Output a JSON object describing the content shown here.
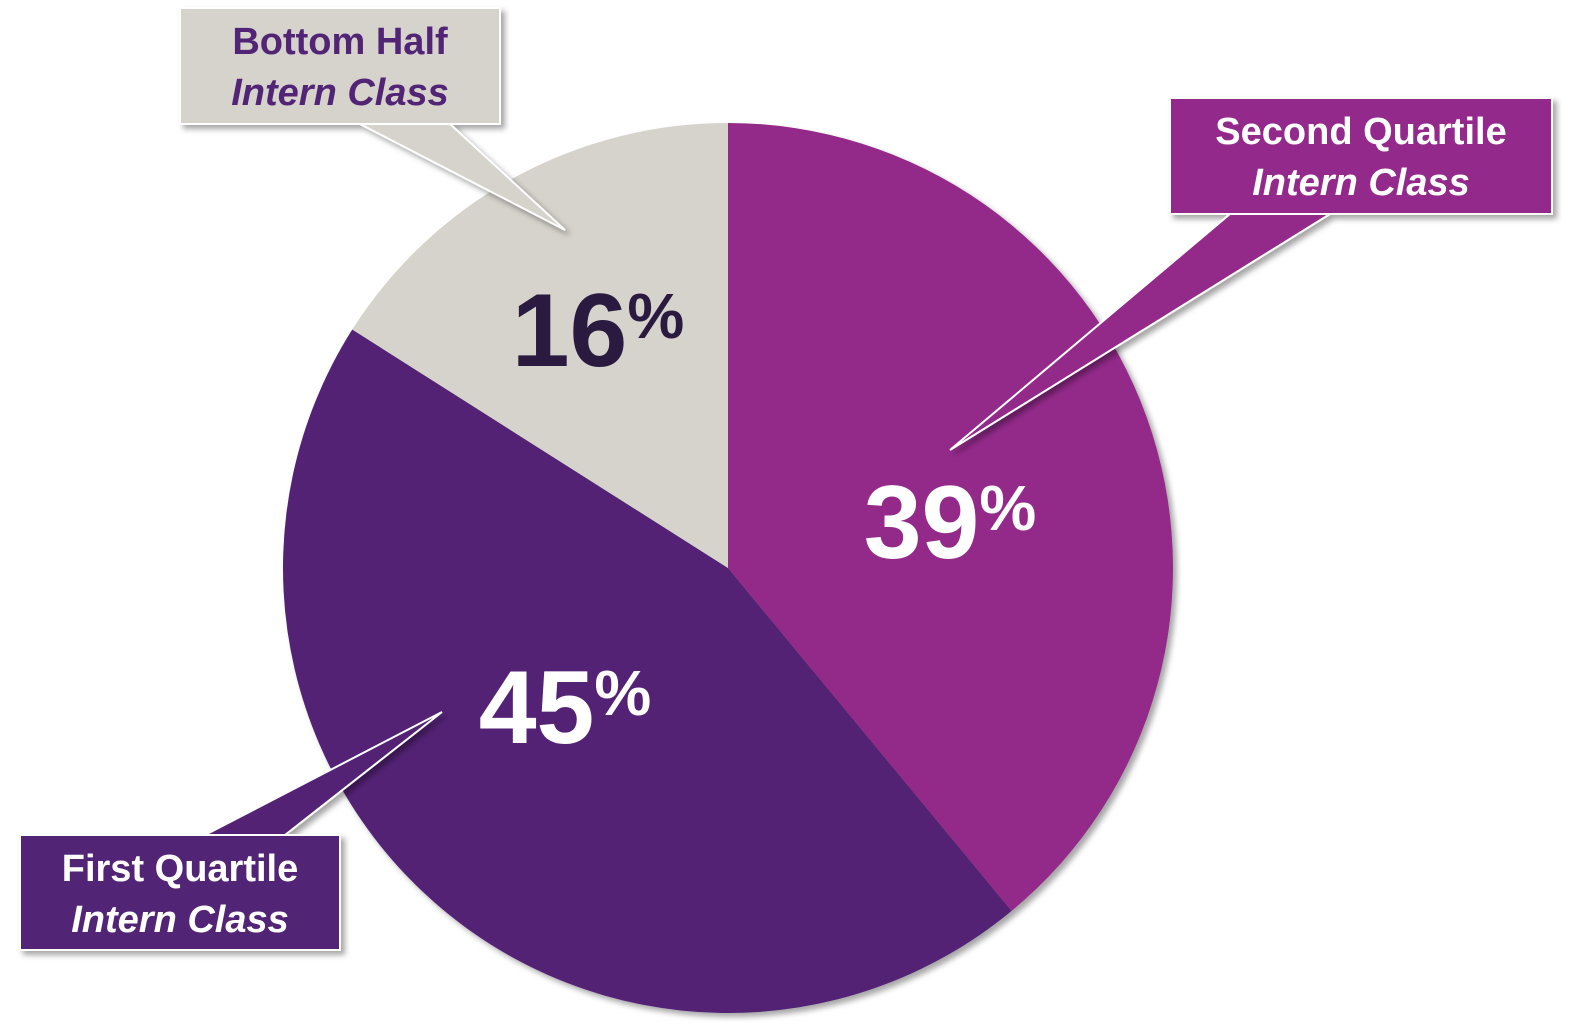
{
  "chart_data": {
    "type": "pie",
    "categories": [
      "Second Quartile",
      "First Quartile",
      "Bottom Half"
    ],
    "category_sublabels": [
      "Intern Class",
      "Intern Class",
      "Intern Class"
    ],
    "values": [
      39,
      45,
      16
    ],
    "value_labels": [
      "39%",
      "45%",
      "16%"
    ],
    "colors": [
      "#93298a",
      "#522475",
      "#d6d2cc"
    ]
  }
}
